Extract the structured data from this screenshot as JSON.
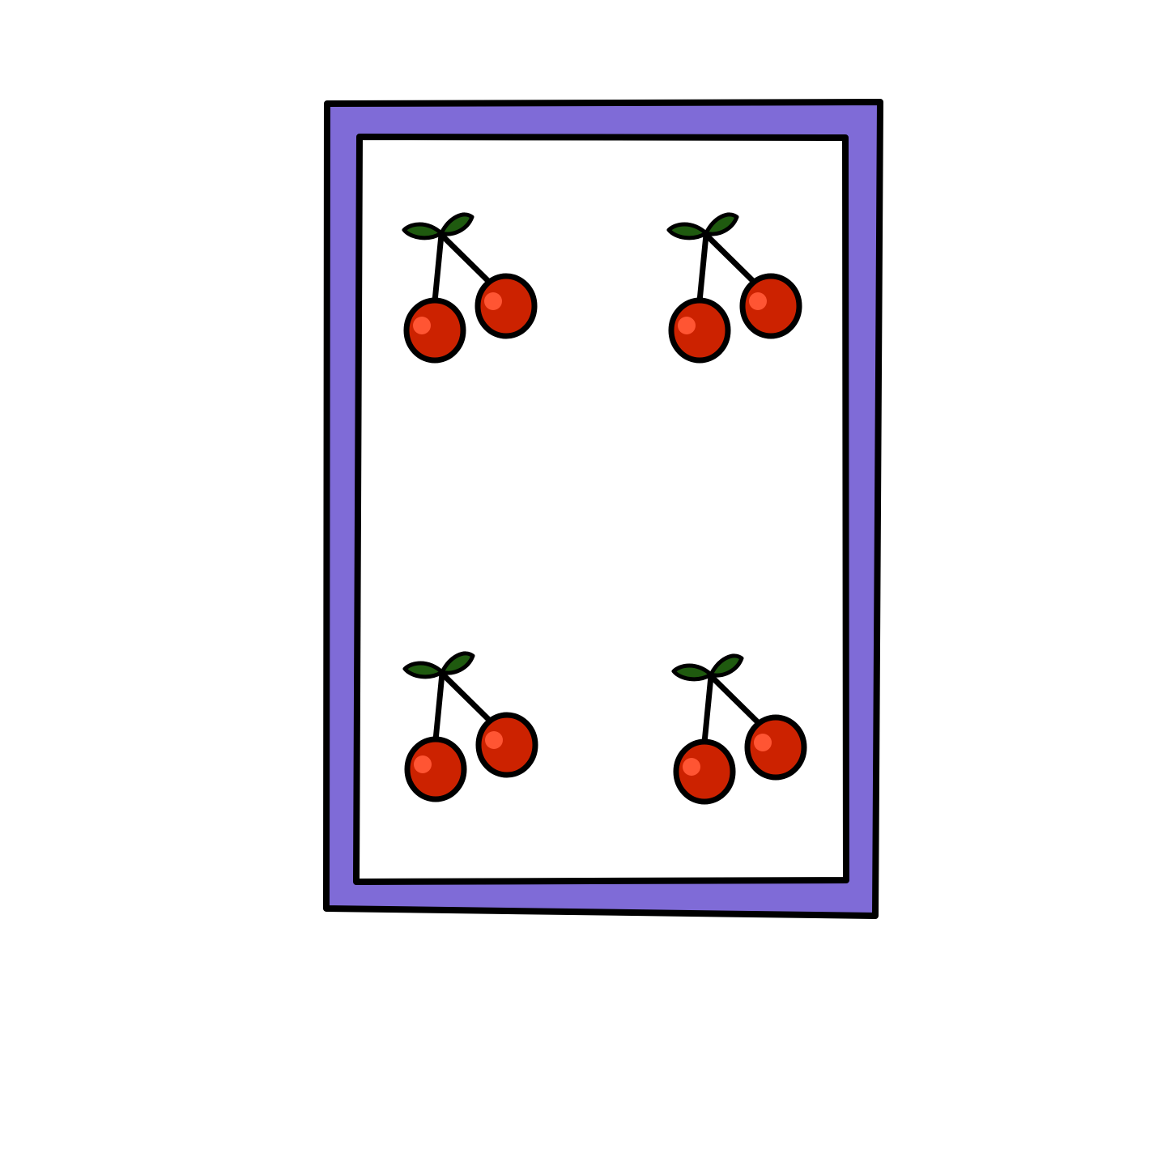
{
  "card": {
    "border_color": "#7f6bd7",
    "face_color": "#ffffff",
    "outline_color": "#000000",
    "pip_icon": "cherry-icon",
    "pip_count": 4
  },
  "cherry": {
    "fruit_color": "#cc2200",
    "highlight_color": "#ff5533",
    "leaf_color": "#1f5a0f",
    "stem_color": "#000000"
  }
}
